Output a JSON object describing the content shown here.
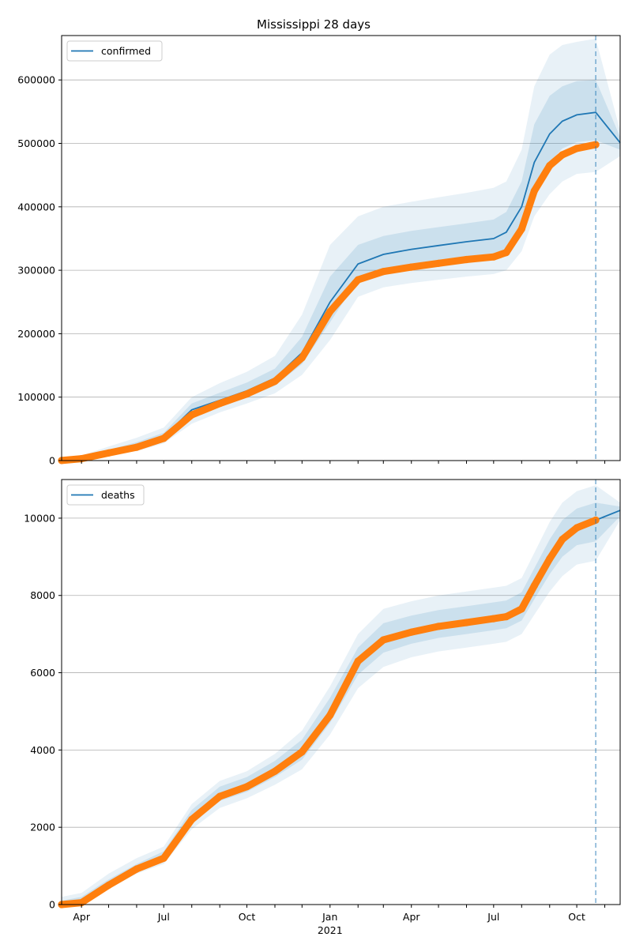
{
  "figure": {
    "title": "Mississippi 28 days"
  },
  "colors": {
    "model_line": "#1f77b4",
    "band": "#1f77b4",
    "observed": "#ff7f0e",
    "grid": "#b0b0b0",
    "axis": "#000000",
    "vline": "#1f77b4"
  },
  "chart_data": [
    {
      "type": "line",
      "series_name": "confirmed",
      "legend_position": "upper-left",
      "grid": "horizontal",
      "ylim": [
        0,
        670000
      ],
      "yticks": [
        0,
        100000,
        200000,
        300000,
        400000,
        500000,
        600000
      ],
      "ytick_labels": [
        "0",
        "100000",
        "200000",
        "300000",
        "400000",
        "500000",
        "600000"
      ],
      "xlim": [
        "2020-03-10",
        "2021-11-18"
      ],
      "forecast_start": "2021-10-22",
      "x": [
        "2020-03-10",
        "2020-04-01",
        "2020-05-01",
        "2020-06-01",
        "2020-07-01",
        "2020-08-01",
        "2020-09-01",
        "2020-10-01",
        "2020-11-01",
        "2020-12-01",
        "2021-01-01",
        "2021-02-01",
        "2021-03-01",
        "2021-04-01",
        "2021-05-01",
        "2021-06-01",
        "2021-07-01",
        "2021-07-15",
        "2021-08-01",
        "2021-08-15",
        "2021-09-01",
        "2021-09-15",
        "2021-10-01",
        "2021-10-22",
        "2021-11-18"
      ],
      "model": [
        1000,
        4000,
        14000,
        24000,
        38000,
        80000,
        95000,
        110000,
        130000,
        170000,
        250000,
        310000,
        325000,
        333000,
        339000,
        345000,
        350000,
        360000,
        400000,
        470000,
        515000,
        535000,
        545000,
        549000,
        501000
      ],
      "bands": {
        "outer_low": [
          0,
          2000,
          8000,
          15000,
          27000,
          58000,
          76000,
          90000,
          106000,
          135000,
          190000,
          258000,
          273000,
          280000,
          285000,
          290000,
          294000,
          300000,
          330000,
          385000,
          420000,
          440000,
          452000,
          455000,
          480000
        ],
        "outer_high": [
          2000,
          8000,
          22000,
          36000,
          52000,
          100000,
          122000,
          140000,
          165000,
          230000,
          340000,
          385000,
          400000,
          408000,
          415000,
          422000,
          430000,
          440000,
          490000,
          590000,
          640000,
          655000,
          660000,
          665000,
          520000
        ],
        "inner_low": [
          500,
          3000,
          11000,
          19000,
          33000,
          68000,
          85000,
          100000,
          118000,
          152000,
          218000,
          285000,
          298000,
          306000,
          311000,
          317000,
          321000,
          330000,
          365000,
          430000,
          470000,
          492000,
          502000,
          505000,
          490000
        ],
        "inner_high": [
          1500,
          6000,
          17000,
          29000,
          44000,
          90000,
          107000,
          123000,
          145000,
          195000,
          290000,
          340000,
          354000,
          362000,
          368000,
          374000,
          380000,
          392000,
          440000,
          530000,
          575000,
          590000,
          598000,
          600000,
          510000
        ]
      },
      "observed": {
        "x": [
          "2020-03-10",
          "2020-04-01",
          "2020-05-01",
          "2020-06-01",
          "2020-07-01",
          "2020-08-01",
          "2020-09-01",
          "2020-10-01",
          "2020-11-01",
          "2020-12-01",
          "2021-01-01",
          "2021-02-01",
          "2021-03-01",
          "2021-04-01",
          "2021-05-01",
          "2021-06-01",
          "2021-07-01",
          "2021-07-15",
          "2021-08-01",
          "2021-08-15",
          "2021-09-01",
          "2021-09-15",
          "2021-10-01",
          "2021-10-22"
        ],
        "y": [
          100,
          3000,
          12000,
          21000,
          35000,
          72000,
          90000,
          105000,
          125000,
          162000,
          235000,
          285000,
          298000,
          305000,
          311000,
          317000,
          321000,
          328000,
          365000,
          425000,
          465000,
          482000,
          492000,
          498000
        ]
      }
    },
    {
      "type": "line",
      "series_name": "deaths",
      "legend_position": "upper-left",
      "grid": "horizontal",
      "ylim": [
        0,
        11000
      ],
      "yticks": [
        0,
        2000,
        4000,
        6000,
        8000,
        10000
      ],
      "ytick_labels": [
        "0",
        "2000",
        "4000",
        "6000",
        "8000",
        "10000"
      ],
      "xlim": [
        "2020-03-10",
        "2021-11-18"
      ],
      "xticks": [
        "2020-04-01",
        "2020-07-01",
        "2020-10-01",
        "2021-01-01",
        "2021-04-01",
        "2021-07-01",
        "2021-10-01"
      ],
      "xtick_labels": [
        "Apr",
        "Jul",
        "Oct",
        "Jan",
        "Apr",
        "Jul",
        "Oct"
      ],
      "xtick_year_label": "2021",
      "forecast_start": "2021-10-22",
      "x": [
        "2020-03-10",
        "2020-04-01",
        "2020-05-01",
        "2020-06-01",
        "2020-07-01",
        "2020-08-01",
        "2020-09-01",
        "2020-10-01",
        "2020-11-01",
        "2020-12-01",
        "2021-01-01",
        "2021-02-01",
        "2021-03-01",
        "2021-04-01",
        "2021-05-01",
        "2021-06-01",
        "2021-07-01",
        "2021-07-15",
        "2021-08-01",
        "2021-08-15",
        "2021-09-01",
        "2021-09-15",
        "2021-10-01",
        "2021-10-22",
        "2021-11-18"
      ],
      "model": [
        10,
        100,
        550,
        950,
        1250,
        2250,
        2850,
        3100,
        3500,
        4000,
        5000,
        6300,
        6900,
        7100,
        7250,
        7350,
        7450,
        7500,
        7700,
        8300,
        9000,
        9500,
        9800,
        9950,
        10200
      ],
      "bands": {
        "outer_low": [
          0,
          50,
          400,
          800,
          1050,
          1950,
          2500,
          2750,
          3100,
          3500,
          4400,
          5600,
          6150,
          6400,
          6550,
          6650,
          6750,
          6800,
          7000,
          7500,
          8100,
          8500,
          8800,
          8900,
          9950
        ],
        "outer_high": [
          200,
          300,
          800,
          1200,
          1500,
          2600,
          3200,
          3450,
          3900,
          4500,
          5650,
          7000,
          7650,
          7850,
          8000,
          8100,
          8200,
          8250,
          8450,
          9100,
          9900,
          10400,
          10700,
          10850,
          10400
        ],
        "inner_low": [
          0,
          80,
          480,
          880,
          1150,
          2100,
          2680,
          2920,
          3300,
          3750,
          4700,
          5950,
          6520,
          6750,
          6900,
          7000,
          7100,
          7150,
          7350,
          7900,
          8550,
          9000,
          9300,
          9400,
          10050
        ],
        "inner_high": [
          100,
          200,
          650,
          1050,
          1380,
          2450,
          3050,
          3300,
          3720,
          4270,
          5350,
          6650,
          7280,
          7480,
          7620,
          7720,
          7820,
          7870,
          8080,
          8700,
          9450,
          9950,
          10250,
          10400,
          10300
        ]
      },
      "observed": {
        "x": [
          "2020-03-10",
          "2020-04-01",
          "2020-05-01",
          "2020-06-01",
          "2020-07-01",
          "2020-08-01",
          "2020-09-01",
          "2020-10-01",
          "2020-11-01",
          "2020-12-01",
          "2021-01-01",
          "2021-02-01",
          "2021-03-01",
          "2021-04-01",
          "2021-05-01",
          "2021-06-01",
          "2021-07-01",
          "2021-07-15",
          "2021-08-01",
          "2021-08-15",
          "2021-09-01",
          "2021-09-15",
          "2021-10-01",
          "2021-10-22"
        ],
        "y": [
          0,
          50,
          500,
          920,
          1200,
          2200,
          2800,
          3050,
          3450,
          3950,
          4900,
          6300,
          6850,
          7050,
          7200,
          7300,
          7400,
          7450,
          7650,
          8250,
          8950,
          9450,
          9750,
          9950
        ]
      }
    }
  ]
}
